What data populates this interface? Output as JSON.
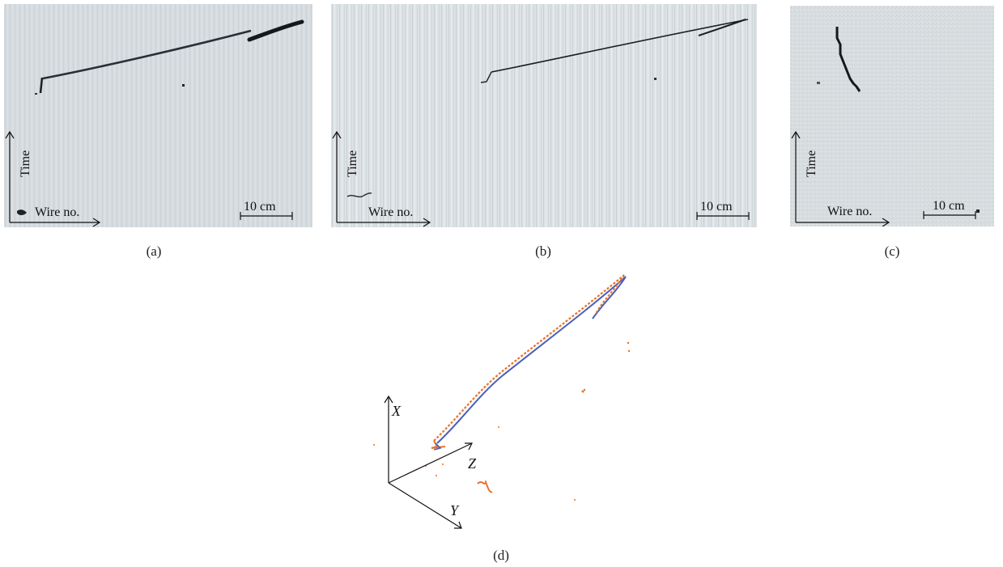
{
  "panels": {
    "a": {
      "caption": "(a)",
      "time_label": "Time",
      "wire_label": "Wire no.",
      "scale_label": "10 cm"
    },
    "b": {
      "caption": "(b)",
      "time_label": "Time",
      "wire_label": "Wire no.",
      "scale_label": "10 cm"
    },
    "c": {
      "caption": "(c)",
      "time_label": "Time",
      "wire_label": "Wire no.",
      "scale_label": "10 cm"
    },
    "d": {
      "caption": "(d)",
      "axis_x": "X",
      "axis_y": "Y",
      "axis_z": "Z"
    }
  },
  "colors": {
    "background_gray": "#d3d9dd",
    "track": "#1b1f24",
    "reco_orange": "#e8722a",
    "reco_blue": "#4a5fb8"
  }
}
